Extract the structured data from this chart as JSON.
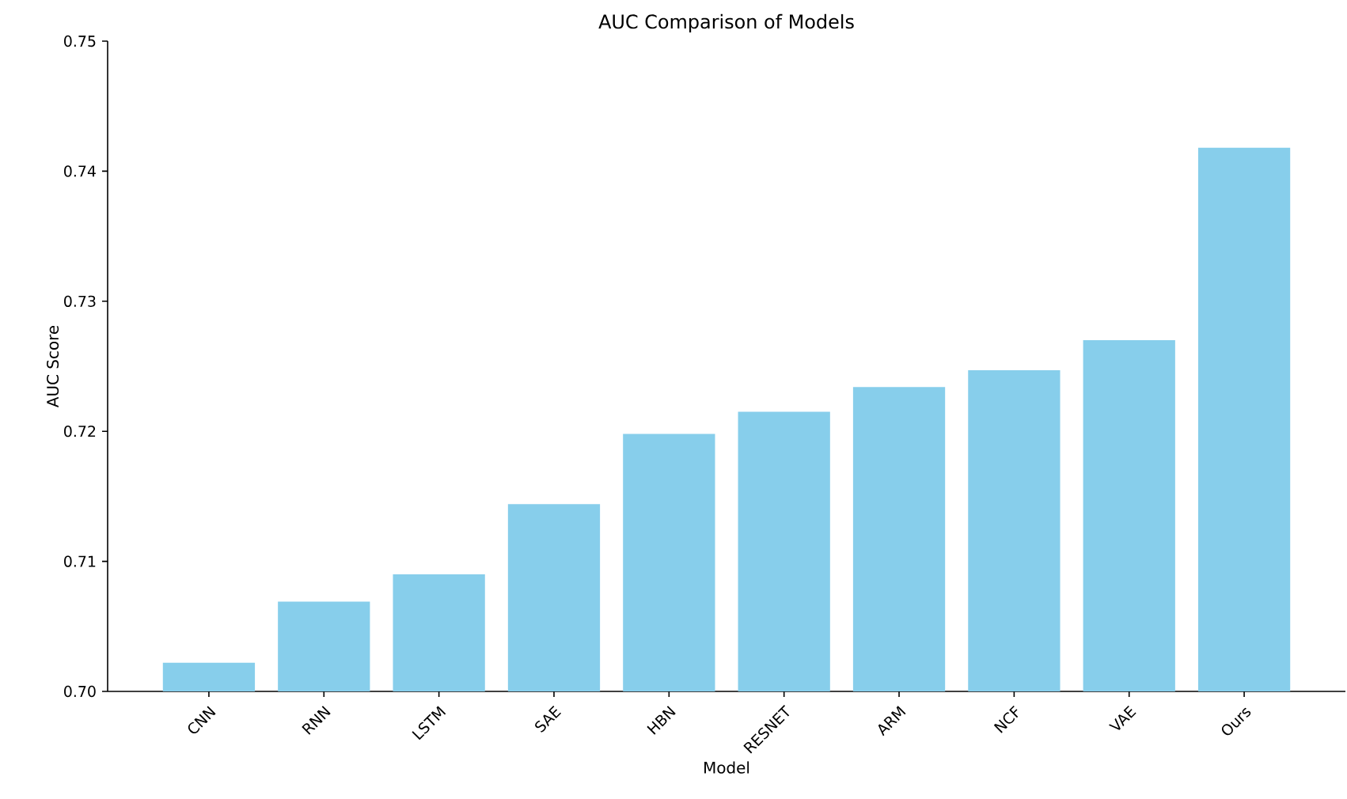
{
  "chart_data": {
    "type": "bar",
    "title": "AUC Comparison of Models",
    "xlabel": "Model",
    "ylabel": "AUC Score",
    "categories": [
      "CNN",
      "RNN",
      "LSTM",
      "SAE",
      "HBN",
      "RESNET",
      "ARM",
      "NCF",
      "VAE",
      "Ours"
    ],
    "values": [
      0.7022,
      0.7069,
      0.709,
      0.7144,
      0.7198,
      0.7215,
      0.7234,
      0.7247,
      0.727,
      0.7418
    ],
    "color": "#87ceeb",
    "ylim": [
      0.7,
      0.75
    ],
    "yticks": [
      {
        "value": 0.7,
        "label": "0.70"
      },
      0.71,
      0.72,
      0.73,
      0.74,
      0.75
    ]
  }
}
